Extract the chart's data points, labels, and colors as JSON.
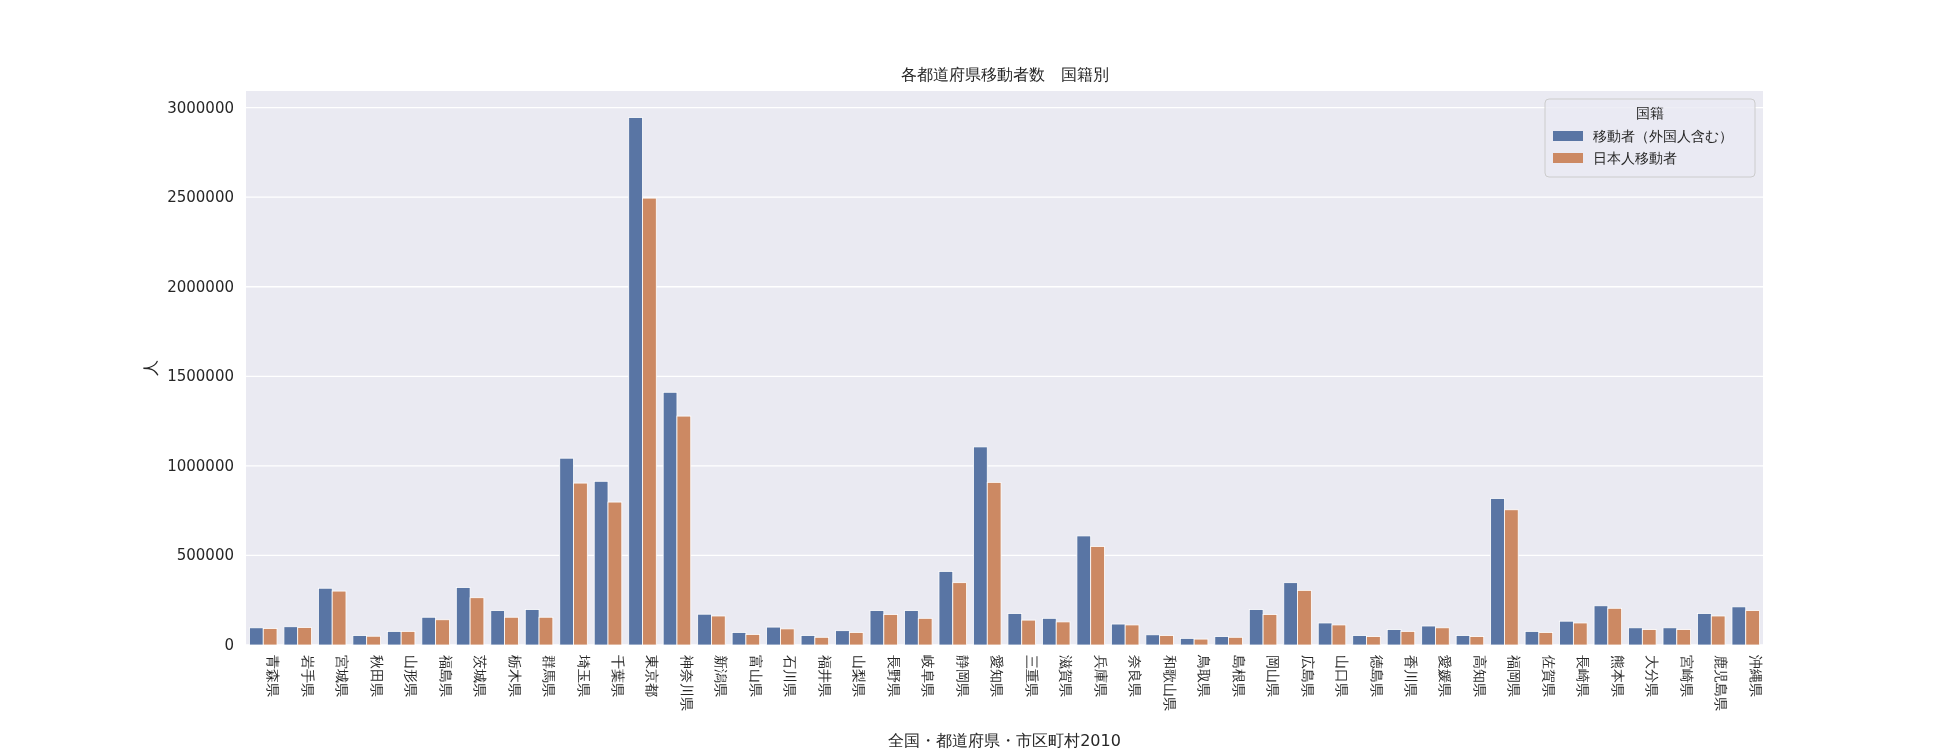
{
  "chart_data": {
    "type": "bar",
    "title": "各都道府県移動者数　国籍別",
    "xlabel": "全国・都道府県・市区町村2010",
    "ylabel": "人",
    "legend_title": "国籍",
    "categories": [
      "青森県",
      "岩手県",
      "宮城県",
      "秋田県",
      "山形県",
      "福島県",
      "茨城県",
      "栃木県",
      "群馬県",
      "埼玉県",
      "千葉県",
      "東京都",
      "神奈川県",
      "新潟県",
      "富山県",
      "石川県",
      "福井県",
      "山梨県",
      "長野県",
      "岐阜県",
      "静岡県",
      "愛知県",
      "三重県",
      "滋賀県",
      "兵庫県",
      "奈良県",
      "和歌山県",
      "鳥取県",
      "島根県",
      "岡山県",
      "広島県",
      "山口県",
      "徳島県",
      "香川県",
      "愛媛県",
      "高知県",
      "福岡県",
      "佐賀県",
      "長崎県",
      "熊本県",
      "大分県",
      "宮崎県",
      "鹿児島県",
      "沖縄県"
    ],
    "series": [
      {
        "name": "移動者（外国人含む）",
        "color": "#5975a4",
        "values": [
          96000,
          102000,
          317000,
          53000,
          76000,
          155000,
          321000,
          192000,
          198000,
          1043000,
          914000,
          2945000,
          1411000,
          172000,
          70000,
          100000,
          53000,
          80000,
          192000,
          192000,
          411000,
          1106000,
          176000,
          149000,
          609000,
          117000,
          57000,
          37000,
          47000,
          198000,
          348000,
          123000,
          53000,
          86000,
          106000,
          53000,
          818000,
          76000,
          133000,
          219000,
          96000,
          96000,
          176000,
          213000
        ]
      },
      {
        "name": "日本人移動者",
        "color": "#cc8963",
        "values": [
          92000,
          98000,
          301000,
          49000,
          76000,
          141000,
          264000,
          155000,
          155000,
          904000,
          798000,
          2495000,
          1278000,
          162000,
          59000,
          90000,
          43000,
          70000,
          170000,
          149000,
          348000,
          908000,
          139000,
          129000,
          550000,
          112000,
          53000,
          33000,
          43000,
          170000,
          305000,
          112000,
          47000,
          76000,
          96000,
          47000,
          755000,
          70000,
          123000,
          205000,
          86000,
          86000,
          162000,
          192000
        ]
      }
    ],
    "ylim": [
      0,
      3093000
    ],
    "yticks": [
      0,
      500000,
      1000000,
      1500000,
      2000000,
      2500000,
      3000000
    ],
    "grid": "y",
    "legend": "top right"
  }
}
